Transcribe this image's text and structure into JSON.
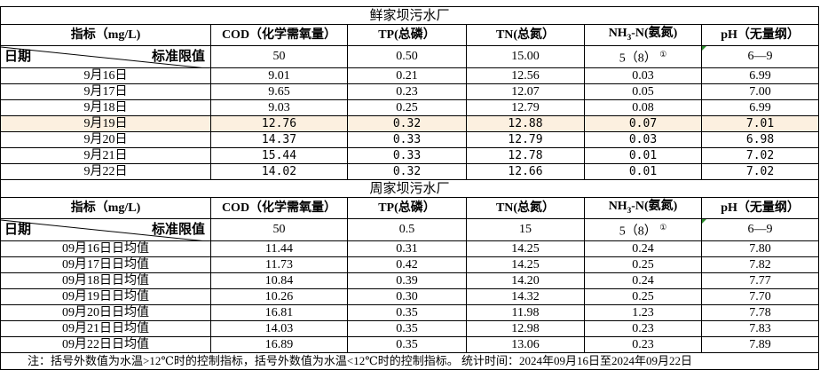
{
  "tables": [
    {
      "plant": "鲜家坝污水厂",
      "headers": [
        "指标（mg/L)",
        "COD（化学需氧量）",
        "TP(总磷）",
        "TN(总氮）",
        "NH3-N(氨氮)",
        "pH（无量纲）"
      ],
      "date_label": "日期",
      "standard_label": "标准限值",
      "standards": [
        "50",
        "0.50",
        "15.00",
        "5（8）",
        "6—9"
      ],
      "footnote_mark": "①",
      "rows": [
        [
          "9月16日",
          "9.01",
          "0.21",
          "12.56",
          "0.03",
          "6.99"
        ],
        [
          "9月17日",
          "9.65",
          "0.23",
          "12.07",
          "0.05",
          "7.00"
        ],
        [
          "9月18日",
          "9.03",
          "0.25",
          "12.79",
          "0.08",
          "6.99"
        ],
        [
          "9月19日",
          "12.76",
          "0.32",
          "12.88",
          "0.07",
          "7.01"
        ],
        [
          "9月20日",
          "14.37",
          "0.33",
          "12.79",
          "0.03",
          "6.98"
        ],
        [
          "9月21日",
          "15.44",
          "0.33",
          "12.78",
          "0.01",
          "7.02"
        ],
        [
          "9月22日",
          "14.02",
          "0.32",
          "12.66",
          "0.01",
          "7.02"
        ]
      ]
    },
    {
      "plant": "周家坝污水厂",
      "headers": [
        "指标（mg/L)",
        "COD（化学需氧量）",
        "TP(总磷）",
        "TN(总氮）",
        "NH3-N(氨氮)",
        "pH（无量纲）"
      ],
      "date_label": "日期",
      "standard_label": "标准限值",
      "standards": [
        "50",
        "0.5",
        "15",
        "5（8）",
        "6—9"
      ],
      "footnote_mark": "①",
      "rows": [
        [
          "09月16日日均值",
          "11.44",
          "0.31",
          "14.25",
          "0.24",
          "7.80"
        ],
        [
          "09月17日日均值",
          "11.73",
          "0.42",
          "14.25",
          "0.25",
          "7.82"
        ],
        [
          "09月18日日均值",
          "10.84",
          "0.39",
          "14.20",
          "0.24",
          "7.77"
        ],
        [
          "09月19日日均值",
          "10.26",
          "0.30",
          "14.32",
          "0.25",
          "7.70"
        ],
        [
          "09月20日日均值",
          "16.81",
          "0.35",
          "11.98",
          "1.23",
          "7.78"
        ],
        [
          "09月21日日均值",
          "14.03",
          "0.35",
          "12.98",
          "0.23",
          "7.83"
        ],
        [
          "09月22日日均值",
          "16.89",
          "0.35",
          "13.06",
          "0.23",
          "7.89"
        ]
      ]
    }
  ],
  "note": "注：括号外数值为水温>12℃时的控制指标，括号外数值为水温<12℃时的控制指标。   统计时间：2024年09月16日至2024年09月22日"
}
